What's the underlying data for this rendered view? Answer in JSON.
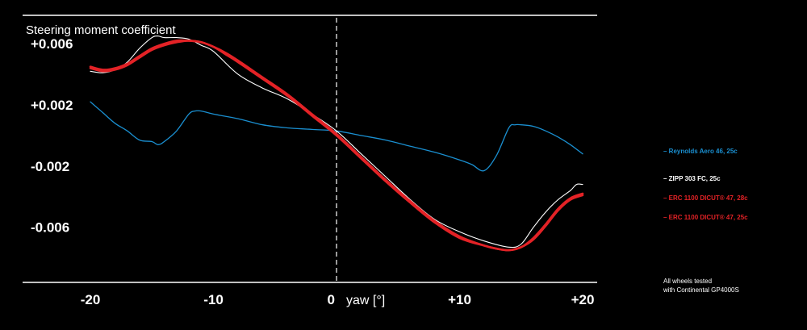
{
  "chart_data": {
    "type": "line",
    "ylabel": "Steering moment coefficient",
    "xlabel": "yaw [°]",
    "xlim": [
      -20,
      20
    ],
    "ylim": [
      -0.0095,
      0.0077
    ],
    "xticks": [
      {
        "value": -20,
        "label": "-20"
      },
      {
        "value": -10,
        "label": "-10"
      },
      {
        "value": 0,
        "label": "0"
      },
      {
        "value": 10,
        "label": "+10"
      },
      {
        "value": 20,
        "label": "+20"
      }
    ],
    "yticks": [
      {
        "value": 0.006,
        "label": "+0.006"
      },
      {
        "value": 0.002,
        "label": "+0.002"
      },
      {
        "value": -0.002,
        "label": "-0.002"
      },
      {
        "value": -0.006,
        "label": "-0.006"
      }
    ],
    "zero_line": {
      "x": 0,
      "style": "dashed"
    },
    "grid": false,
    "legend_position": "right",
    "series": [
      {
        "name": "Reynolds Aero 46, 25c",
        "color": "#1a8fd0",
        "width": 1.3,
        "x": [
          -20,
          -19,
          -18,
          -17,
          -16,
          -15,
          -14.5,
          -14,
          -13,
          -12,
          -11.5,
          -11,
          -10,
          -8,
          -6,
          -4,
          -2,
          0,
          2,
          4,
          6,
          8,
          10,
          11,
          12,
          13,
          14,
          14.5,
          15,
          16,
          17,
          18,
          19,
          20
        ],
        "y": [
          0.0022,
          0.0015,
          0.0008,
          0.0003,
          -0.0003,
          -0.0004,
          -0.0006,
          -0.0004,
          0.0003,
          0.0014,
          0.0016,
          0.0016,
          0.0014,
          0.0011,
          0.0007,
          0.0005,
          0.0004,
          0.0003,
          0.0,
          -0.0003,
          -0.0007,
          -0.0011,
          -0.0016,
          -0.0019,
          -0.0023,
          -0.0013,
          0.0005,
          0.0007,
          0.0007,
          0.0006,
          0.0003,
          -0.0001,
          -0.0006,
          -0.0012
        ]
      },
      {
        "name": "ZIPP 303 FC, 25c",
        "color": "#ffffff",
        "width": 1.1,
        "x": [
          -20,
          -19,
          -18,
          -17,
          -16,
          -15,
          -14.5,
          -14,
          -13,
          -12,
          -11,
          -10,
          -8,
          -6,
          -4,
          -2,
          0,
          2,
          4,
          6,
          8,
          10,
          12,
          14,
          15,
          16,
          17,
          18,
          19,
          19.5,
          20
        ],
        "y": [
          0.0042,
          0.0041,
          0.0043,
          0.0048,
          0.0057,
          0.0064,
          0.0065,
          0.0064,
          0.0064,
          0.0063,
          0.0059,
          0.0055,
          0.004,
          0.0031,
          0.0024,
          0.0014,
          0.0003,
          -0.0012,
          -0.0027,
          -0.0042,
          -0.0055,
          -0.0063,
          -0.0069,
          -0.0073,
          -0.0071,
          -0.006,
          -0.005,
          -0.0042,
          -0.0036,
          -0.0032,
          -0.0032
        ]
      },
      {
        "name": "ERC 1100 DICUT® 47, 28c",
        "color": "#e32226",
        "width": 2.6,
        "x": [
          -20,
          -19,
          -18,
          -17,
          -16,
          -15,
          -14,
          -13,
          -12,
          -11,
          -10,
          -9,
          -8,
          -6,
          -4,
          -2,
          0,
          2,
          4,
          6,
          8,
          10,
          12,
          13,
          14,
          15,
          16,
          17,
          18,
          19,
          20
        ],
        "y": [
          0.0044,
          0.0042,
          0.0043,
          0.0046,
          0.0051,
          0.0056,
          0.0059,
          0.0061,
          0.0062,
          0.0061,
          0.0058,
          0.0054,
          0.0049,
          0.0038,
          0.0027,
          0.0014,
          0.0001,
          -0.0014,
          -0.0029,
          -0.0043,
          -0.0056,
          -0.0066,
          -0.0072,
          -0.0074,
          -0.0075,
          -0.0073,
          -0.0067,
          -0.0058,
          -0.0048,
          -0.0041,
          -0.0038
        ]
      },
      {
        "name": "ERC 1100 DICUT® 47, 25c",
        "color": "#e32226",
        "width": 2.6,
        "x": [
          -20,
          -19,
          -18,
          -17,
          -16,
          -15,
          -14,
          -13,
          -12,
          -11,
          -10,
          -9,
          -8,
          -6,
          -4,
          -2,
          0,
          2,
          4,
          6,
          8,
          10,
          12,
          13,
          14,
          15,
          16,
          17,
          18,
          19,
          20
        ],
        "y": [
          0.0045,
          0.0043,
          0.0044,
          0.0047,
          0.0052,
          0.0057,
          0.006,
          0.0062,
          0.0062,
          0.0061,
          0.0058,
          0.0053,
          0.0048,
          0.0037,
          0.0026,
          0.0013,
          0.0,
          -0.0015,
          -0.003,
          -0.0044,
          -0.0057,
          -0.0067,
          -0.0072,
          -0.0074,
          -0.0075,
          -0.0073,
          -0.0068,
          -0.0059,
          -0.0049,
          -0.0042,
          -0.0039
        ]
      }
    ]
  },
  "legend": [
    {
      "label": "– Reynolds Aero 46, 25c",
      "color": "#1a8fd0"
    },
    {
      "label": "– ZIPP 303 FC, 25c",
      "color": "#ffffff"
    },
    {
      "label": "– ERC 1100 DICUT® 47, 28c",
      "color": "#e32226"
    },
    {
      "label": "– ERC 1100 DICUT® 47, 25c",
      "color": "#e32226"
    }
  ],
  "note": {
    "line1": "All wheels tested",
    "line2": "with Continental GP4000S"
  }
}
